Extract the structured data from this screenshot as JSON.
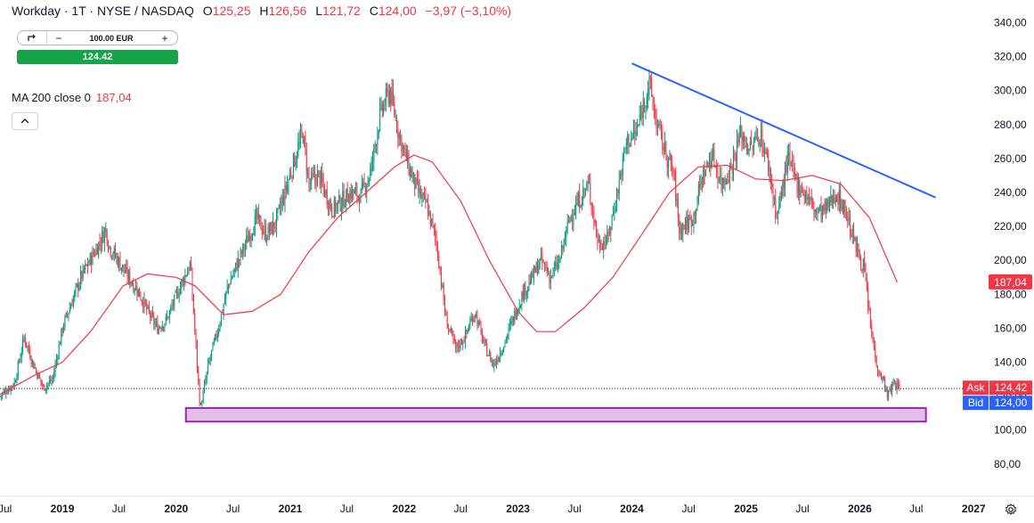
{
  "header": {
    "symbol": "Workday · 1T · NYSE / NASDAQ",
    "open_label": "O",
    "open_value": "125,25",
    "high_label": "H",
    "high_value": "126,56",
    "low_label": "L",
    "low_value": "121,72",
    "close_label": "C",
    "close_value": "124,00",
    "change": "−3,97 (−3,10%)"
  },
  "order_panel": {
    "toggle_icon": "swap-icon",
    "minus_label": "−",
    "quantity": "100.00 EUR",
    "plus_label": "+",
    "price_button": "124.42"
  },
  "indicator": {
    "label": "MA 200 close 0",
    "value": "187,04",
    "collapse_icon": "chevron-up-icon"
  },
  "price_scale": {
    "ticks": [
      "340,00",
      "320,00",
      "300,00",
      "280,00",
      "260,00",
      "240,00",
      "220,00",
      "200,00",
      "180,00",
      "160,00",
      "140,00",
      "120,00",
      "100,00",
      "80,00"
    ],
    "ma_badge": "187,04",
    "ask_label": "Ask",
    "ask_value": "124,42",
    "bid_label": "Bid",
    "bid_value": "124,00"
  },
  "time_scale": {
    "ticks": [
      "Jul",
      "2019",
      "Jul",
      "2020",
      "Jul",
      "2021",
      "Jul",
      "2022",
      "Jul",
      "2023",
      "Jul",
      "2024",
      "Jul",
      "2025",
      "Jul",
      "2026",
      "Jul",
      "2027"
    ]
  },
  "colors": {
    "up": "#089981",
    "down": "#f23645",
    "ma": "#f23645",
    "trendline": "#2962ff",
    "zone_fill": "#e1bee7",
    "zone_border": "#9c27b0",
    "ask": "#f23645",
    "bid": "#2962ff"
  },
  "chart_data": {
    "type": "candlestick",
    "title": "Workday · 1T · NYSE / NASDAQ",
    "ylim": [
      70,
      345
    ],
    "y_ticks": [
      80,
      100,
      120,
      140,
      160,
      180,
      200,
      220,
      240,
      260,
      280,
      300,
      320,
      340
    ],
    "x_range": [
      "2018-06-15",
      "2027-02-15"
    ],
    "price_path": [
      [
        "2018-06-15",
        120
      ],
      [
        "2018-08-01",
        128
      ],
      [
        "2018-09-01",
        155
      ],
      [
        "2018-10-01",
        138
      ],
      [
        "2018-11-01",
        125
      ],
      [
        "2018-12-01",
        130
      ],
      [
        "2019-01-01",
        160
      ],
      [
        "2019-03-01",
        190
      ],
      [
        "2019-04-15",
        205
      ],
      [
        "2019-05-20",
        218
      ],
      [
        "2019-06-01",
        208
      ],
      [
        "2019-08-01",
        190
      ],
      [
        "2019-09-01",
        182
      ],
      [
        "2019-10-01",
        170
      ],
      [
        "2019-11-01",
        160
      ],
      [
        "2019-12-01",
        165
      ],
      [
        "2020-01-15",
        185
      ],
      [
        "2020-02-15",
        198
      ],
      [
        "2020-03-18",
        112
      ],
      [
        "2020-04-15",
        140
      ],
      [
        "2020-05-15",
        160
      ],
      [
        "2020-06-15",
        185
      ],
      [
        "2020-07-15",
        198
      ],
      [
        "2020-08-15",
        212
      ],
      [
        "2020-09-15",
        225
      ],
      [
        "2020-10-15",
        215
      ],
      [
        "2020-11-15",
        222
      ],
      [
        "2020-12-15",
        240
      ],
      [
        "2021-01-15",
        260
      ],
      [
        "2021-02-10",
        275
      ],
      [
        "2021-03-01",
        245
      ],
      [
        "2021-04-01",
        250
      ],
      [
        "2021-05-15",
        230
      ],
      [
        "2021-06-15",
        235
      ],
      [
        "2021-07-15",
        240
      ],
      [
        "2021-08-15",
        238
      ],
      [
        "2021-09-15",
        252
      ],
      [
        "2021-10-15",
        285
      ],
      [
        "2021-11-15",
        300
      ],
      [
        "2021-12-15",
        275
      ],
      [
        "2022-01-15",
        255
      ],
      [
        "2022-02-15",
        240
      ],
      [
        "2022-03-15",
        232
      ],
      [
        "2022-04-15",
        210
      ],
      [
        "2022-05-15",
        165
      ],
      [
        "2022-06-15",
        148
      ],
      [
        "2022-07-15",
        155
      ],
      [
        "2022-08-15",
        170
      ],
      [
        "2022-09-15",
        150
      ],
      [
        "2022-10-15",
        138
      ],
      [
        "2022-11-15",
        150
      ],
      [
        "2022-12-15",
        165
      ],
      [
        "2023-01-15",
        180
      ],
      [
        "2023-02-15",
        190
      ],
      [
        "2023-03-15",
        200
      ],
      [
        "2023-04-15",
        190
      ],
      [
        "2023-05-15",
        200
      ],
      [
        "2023-06-15",
        225
      ],
      [
        "2023-07-15",
        235
      ],
      [
        "2023-08-15",
        245
      ],
      [
        "2023-09-15",
        210
      ],
      [
        "2023-10-15",
        212
      ],
      [
        "2023-11-15",
        240
      ],
      [
        "2023-12-15",
        270
      ],
      [
        "2024-01-15",
        275
      ],
      [
        "2024-02-25",
        305
      ],
      [
        "2024-03-15",
        285
      ],
      [
        "2024-04-15",
        265
      ],
      [
        "2024-05-15",
        250
      ],
      [
        "2024-06-01",
        218
      ],
      [
        "2024-07-15",
        225
      ],
      [
        "2024-08-15",
        250
      ],
      [
        "2024-09-15",
        262
      ],
      [
        "2024-10-15",
        245
      ],
      [
        "2024-11-15",
        255
      ],
      [
        "2024-12-15",
        275
      ],
      [
        "2025-01-15",
        265
      ],
      [
        "2025-02-15",
        275
      ],
      [
        "2025-03-15",
        255
      ],
      [
        "2025-04-10",
        225
      ],
      [
        "2025-05-15",
        260
      ],
      [
        "2025-06-15",
        245
      ],
      [
        "2025-07-15",
        238
      ],
      [
        "2025-08-15",
        228
      ],
      [
        "2025-09-15",
        230
      ],
      [
        "2025-10-15",
        240
      ],
      [
        "2025-11-15",
        230
      ],
      [
        "2025-12-15",
        210
      ],
      [
        "2026-01-15",
        195
      ],
      [
        "2026-02-05",
        160
      ],
      [
        "2026-02-25",
        138
      ],
      [
        "2026-03-15",
        130
      ],
      [
        "2026-04-01",
        120
      ],
      [
        "2026-04-20",
        128
      ],
      [
        "2026-05-10",
        124
      ]
    ],
    "ma200": [
      [
        "2018-06-15",
        121
      ],
      [
        "2018-10-01",
        132
      ],
      [
        "2019-01-01",
        140
      ],
      [
        "2019-04-01",
        158
      ],
      [
        "2019-07-15",
        185
      ],
      [
        "2019-10-01",
        192
      ],
      [
        "2020-01-01",
        190
      ],
      [
        "2020-03-01",
        185
      ],
      [
        "2020-06-01",
        168
      ],
      [
        "2020-09-01",
        170
      ],
      [
        "2020-12-01",
        180
      ],
      [
        "2021-03-01",
        205
      ],
      [
        "2021-06-01",
        225
      ],
      [
        "2021-09-01",
        240
      ],
      [
        "2021-12-01",
        255
      ],
      [
        "2022-02-01",
        262
      ],
      [
        "2022-04-01",
        258
      ],
      [
        "2022-07-01",
        235
      ],
      [
        "2022-10-01",
        200
      ],
      [
        "2023-01-01",
        170
      ],
      [
        "2023-03-01",
        158
      ],
      [
        "2023-05-01",
        158
      ],
      [
        "2023-08-01",
        172
      ],
      [
        "2023-11-01",
        190
      ],
      [
        "2024-02-01",
        215
      ],
      [
        "2024-05-01",
        240
      ],
      [
        "2024-08-01",
        255
      ],
      [
        "2024-11-01",
        256
      ],
      [
        "2025-02-01",
        248
      ],
      [
        "2025-05-01",
        247
      ],
      [
        "2025-08-01",
        250
      ],
      [
        "2025-11-01",
        245
      ],
      [
        "2026-02-01",
        225
      ],
      [
        "2026-05-01",
        187.04
      ]
    ],
    "trendline": [
      [
        "2024-01-01",
        316
      ],
      [
        "2026-09-01",
        237
      ]
    ],
    "support_zone": {
      "x": [
        "2020-02-01",
        "2026-08-01"
      ],
      "y": [
        105,
        113
      ]
    },
    "last_price_line": 124.42,
    "ma_last": 187.04,
    "ask": 124.42,
    "bid": 124.0
  }
}
